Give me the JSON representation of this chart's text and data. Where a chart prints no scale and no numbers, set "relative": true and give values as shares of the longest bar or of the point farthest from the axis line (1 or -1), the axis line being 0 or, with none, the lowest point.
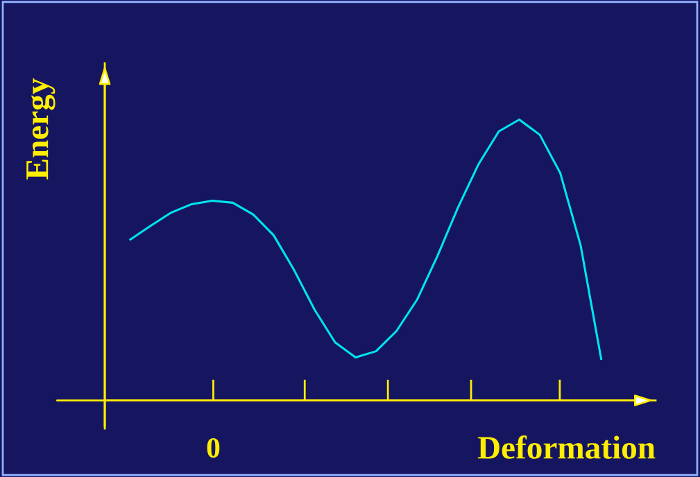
{
  "chart_data": {
    "type": "line",
    "relative": true,
    "xlabel": "Deformation",
    "ylabel": "Energy",
    "annotations": [
      "0"
    ],
    "categories": [
      null,
      null,
      null,
      null,
      null,
      null,
      null,
      null,
      null,
      null,
      null,
      null,
      null,
      null,
      null,
      null,
      null,
      null,
      null,
      null,
      null,
      null,
      null,
      null
    ],
    "grid": false,
    "legend": false,
    "marker": "none",
    "line_style": "solid",
    "series": [
      {
        "color": "#00e5ee",
        "values": [
          0.573,
          0.622,
          0.669,
          0.699,
          0.711,
          0.704,
          0.662,
          0.588,
          0.464,
          0.323,
          0.207,
          0.153,
          0.175,
          0.247,
          0.358,
          0.514,
          0.686,
          0.84,
          0.958,
          1.0,
          0.946,
          0.81,
          0.551,
          0.148
        ]
      }
    ]
  }
}
